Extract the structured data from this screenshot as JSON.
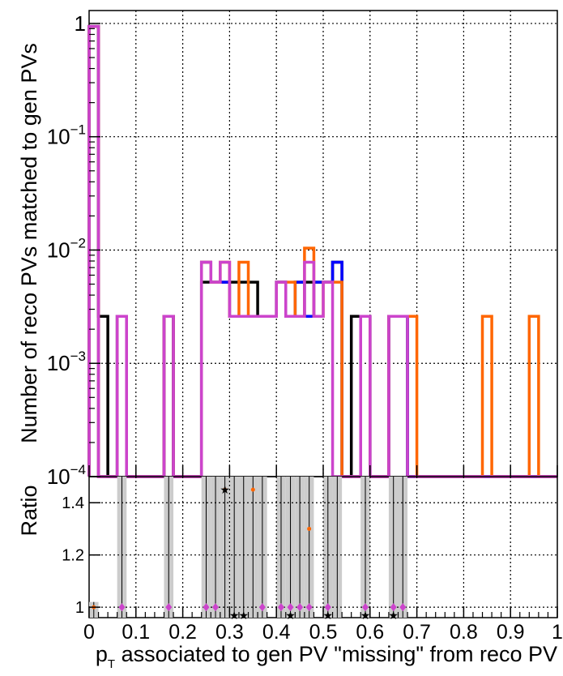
{
  "chart_data": {
    "type": "histogram",
    "xlabel": "p_T associated to gen PV \"missing\" from reco PV",
    "xlabel_main": "p",
    "xlabel_sub": "T",
    "xlabel_rest": " associated to gen PV \"missing\" from reco PV",
    "ylabel": "Number of reco PVs matched to gen PVs",
    "ratio_ylabel": "Ratio",
    "xlim": [
      0,
      1
    ],
    "ylim": [
      0.0001,
      1.3
    ],
    "yscale": "log",
    "grid": true,
    "bin_width": 0.02,
    "x_ticks": [
      "0",
      "0.1",
      "0.2",
      "0.3",
      "0.4",
      "0.5",
      "0.6",
      "0.7",
      "0.8",
      "0.9",
      "1"
    ],
    "y_ticks": [
      {
        "base": "1",
        "exp": "",
        "value": 1
      },
      {
        "base": "10",
        "exp": "−1",
        "value": 0.1
      },
      {
        "base": "10",
        "exp": "−2",
        "value": 0.01
      },
      {
        "base": "10",
        "exp": "−3",
        "value": 0.001
      },
      {
        "base": "10",
        "exp": "−4",
        "value": 0.0001
      }
    ],
    "ratio_ylim": [
      0.96,
      1.5
    ],
    "ratio_ticks": [
      "1",
      "1.2",
      "1.4"
    ],
    "ratio_tick_values": [
      1,
      1.2,
      1.4
    ],
    "series": [
      {
        "color": "#000000",
        "bins": [
          [
            0.0,
            0.94
          ],
          [
            0.02,
            0.0026
          ],
          [
            0.06,
            0.0026
          ],
          [
            0.16,
            0.0026
          ],
          [
            0.24,
            0.0052
          ],
          [
            0.26,
            0.0052
          ],
          [
            0.28,
            0.0052
          ],
          [
            0.3,
            0.0052
          ],
          [
            0.32,
            0.0052
          ],
          [
            0.34,
            0.0052
          ],
          [
            0.36,
            0.0026
          ],
          [
            0.38,
            0.0026
          ],
          [
            0.4,
            0.0052
          ],
          [
            0.42,
            0.0026
          ],
          [
            0.44,
            0.0052
          ],
          [
            0.46,
            0.0052
          ],
          [
            0.48,
            0.0052
          ],
          [
            0.5,
            0.0052
          ],
          [
            0.52,
            0.0078
          ],
          [
            0.56,
            0.0026
          ],
          [
            0.58,
            0.0026
          ],
          [
            0.64,
            0.0026
          ],
          [
            0.66,
            0.0026
          ]
        ]
      },
      {
        "color": "#0000ff",
        "bins": [
          [
            0.0,
            0.94
          ],
          [
            0.06,
            0.0026
          ],
          [
            0.16,
            0.0026
          ],
          [
            0.24,
            0.0078
          ],
          [
            0.26,
            0.0052
          ],
          [
            0.28,
            0.0052
          ],
          [
            0.3,
            0.0026
          ],
          [
            0.32,
            0.0026
          ],
          [
            0.34,
            0.0026
          ],
          [
            0.36,
            0.0026
          ],
          [
            0.38,
            0.0026
          ],
          [
            0.4,
            0.0052
          ],
          [
            0.42,
            0.0026
          ],
          [
            0.44,
            0.0052
          ],
          [
            0.46,
            0.0026
          ],
          [
            0.48,
            0.0052
          ],
          [
            0.5,
            0.0052
          ],
          [
            0.52,
            0.0078
          ],
          [
            0.58,
            0.0026
          ],
          [
            0.64,
            0.0026
          ],
          [
            0.66,
            0.0026
          ]
        ]
      },
      {
        "color": "#ff6600",
        "bins": [
          [
            0.0,
            0.94
          ],
          [
            0.06,
            0.0026
          ],
          [
            0.16,
            0.0026
          ],
          [
            0.24,
            0.0078
          ],
          [
            0.26,
            0.0052
          ],
          [
            0.28,
            0.0078
          ],
          [
            0.3,
            0.0026
          ],
          [
            0.32,
            0.0078
          ],
          [
            0.34,
            0.0026
          ],
          [
            0.36,
            0.0026
          ],
          [
            0.38,
            0.0026
          ],
          [
            0.4,
            0.0052
          ],
          [
            0.42,
            0.0052
          ],
          [
            0.44,
            0.0026
          ],
          [
            0.46,
            0.0104
          ],
          [
            0.48,
            0.0026
          ],
          [
            0.5,
            0.0052
          ],
          [
            0.52,
            0.0052
          ],
          [
            0.58,
            0.0026
          ],
          [
            0.64,
            0.0026
          ],
          [
            0.66,
            0.0026
          ],
          [
            0.68,
            0.0026
          ],
          [
            0.84,
            0.0026
          ],
          [
            0.94,
            0.0026
          ]
        ]
      },
      {
        "color": "#cc44cc",
        "bins": [
          [
            0.0,
            0.94
          ],
          [
            0.06,
            0.0026
          ],
          [
            0.16,
            0.0026
          ],
          [
            0.24,
            0.0078
          ],
          [
            0.26,
            0.0052
          ],
          [
            0.28,
            0.0078
          ],
          [
            0.3,
            0.0026
          ],
          [
            0.32,
            0.0026
          ],
          [
            0.34,
            0.0026
          ],
          [
            0.36,
            0.0026
          ],
          [
            0.38,
            0.0026
          ],
          [
            0.4,
            0.0052
          ],
          [
            0.42,
            0.0026
          ],
          [
            0.44,
            0.0026
          ],
          [
            0.46,
            0.0078
          ],
          [
            0.48,
            0.0026
          ],
          [
            0.5,
            0.0052
          ],
          [
            0.58,
            0.0026
          ],
          [
            0.64,
            0.0026
          ],
          [
            0.66,
            0.0026
          ]
        ]
      }
    ],
    "ratio_points": [
      {
        "color": "#ff6600",
        "marker": "circle",
        "points": [
          [
            0.01,
            1.0
          ],
          [
            0.07,
            1.0
          ],
          [
            0.17,
            1.0
          ],
          [
            0.25,
            1.0
          ],
          [
            0.27,
            1.0
          ],
          [
            0.29,
            1.45
          ],
          [
            0.35,
            1.45
          ],
          [
            0.41,
            1.0
          ],
          [
            0.47,
            1.3
          ],
          [
            0.51,
            1.0
          ],
          [
            0.59,
            1.0
          ],
          [
            0.65,
            1.0
          ],
          [
            0.67,
            1.0
          ]
        ]
      },
      {
        "color": "#cc44cc",
        "marker": "diamond",
        "points": [
          [
            0.07,
            1.0
          ],
          [
            0.17,
            1.0
          ],
          [
            0.25,
            1.0
          ],
          [
            0.27,
            1.0
          ],
          [
            0.37,
            1.0
          ],
          [
            0.41,
            1.0
          ],
          [
            0.43,
            1.0
          ],
          [
            0.45,
            1.0
          ],
          [
            0.47,
            1.0
          ],
          [
            0.51,
            1.0
          ],
          [
            0.59,
            1.0
          ],
          [
            0.65,
            1.0
          ],
          [
            0.67,
            1.0
          ]
        ]
      },
      {
        "color": "#000000",
        "marker": "star",
        "points": [
          [
            0.29,
            1.45
          ],
          [
            0.31,
            0.97
          ],
          [
            0.33,
            0.97
          ],
          [
            0.43,
            0.97
          ],
          [
            0.51,
            0.97
          ],
          [
            0.59,
            0.97
          ],
          [
            0.65,
            0.97
          ]
        ]
      }
    ],
    "ratio_bands": [
      0.0,
      0.06,
      0.16,
      0.24,
      0.26,
      0.28,
      0.3,
      0.32,
      0.34,
      0.36,
      0.4,
      0.42,
      0.44,
      0.46,
      0.5,
      0.52,
      0.58,
      0.64,
      0.66
    ],
    "ratio_band_heights": [
      0.06,
      0.54,
      0.54,
      0.54,
      0.54,
      0.54,
      0.54,
      0.54,
      0.54,
      0.54,
      0.54,
      0.54,
      0.54,
      0.54,
      0.54,
      0.54,
      0.54,
      0.54,
      0.54
    ]
  }
}
